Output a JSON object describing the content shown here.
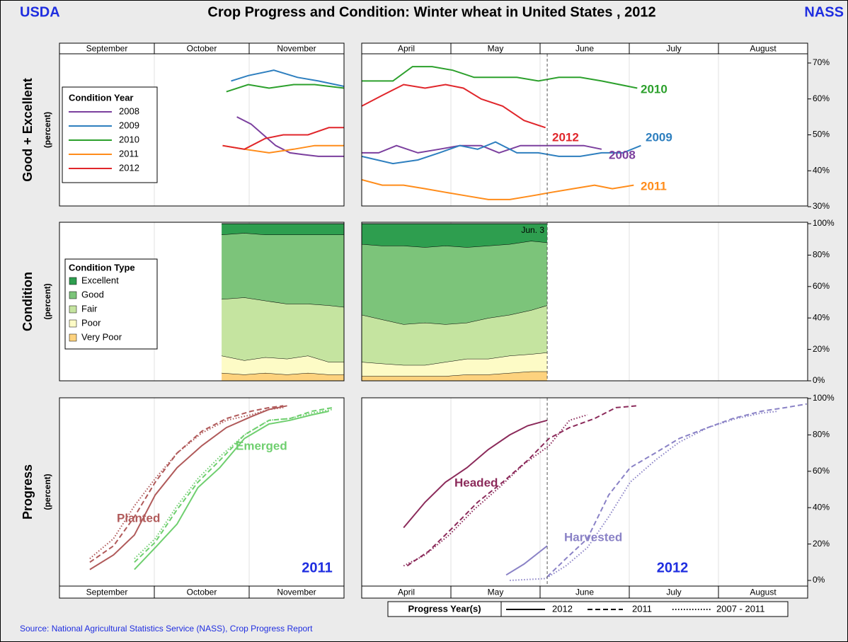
{
  "header": {
    "left": "USDA",
    "title": "Crop Progress and Condition: Winter wheat in United States , 2012",
    "right": "NASS"
  },
  "source": "Source: National Agricultural Statistics Service (NASS), Crop Progress Report",
  "chart_data": [
    {
      "type": "line",
      "ylabel": "Good + Excellent",
      "ylabel_note": "(percent)",
      "legend_title": "Condition Year",
      "xlim": [
        0,
        3
      ],
      "xticks": [
        0,
        1,
        2,
        3
      ],
      "months": [
        "September",
        "October",
        "November"
      ],
      "ylim": [
        30,
        70
      ],
      "series": [
        {
          "name": "2008",
          "color": "#7b3f9e",
          "x": [
            1.87,
            2.02,
            2.15,
            2.28,
            2.43,
            2.57,
            2.73,
            3.0
          ],
          "values": [
            55,
            53,
            50,
            47,
            45,
            44.5,
            44,
            44
          ]
        },
        {
          "name": "2009",
          "color": "#2e7fbf",
          "x": [
            1.81,
            1.99,
            2.26,
            2.51,
            2.73,
            3.0
          ],
          "values": [
            65,
            66.5,
            68,
            66,
            65,
            63.5
          ]
        },
        {
          "name": "2010",
          "color": "#2ca02c",
          "x": [
            1.76,
            1.99,
            2.21,
            2.47,
            2.69,
            3.0
          ],
          "values": [
            62,
            64,
            63,
            64,
            64,
            63
          ]
        },
        {
          "name": "2011",
          "color": "#ff8c1a",
          "x": [
            1.72,
            1.95,
            2.21,
            2.47,
            2.69,
            3.0
          ],
          "values": [
            47,
            46,
            45,
            46,
            47,
            47
          ]
        },
        {
          "name": "2012",
          "color": "#e0262b",
          "x": [
            1.72,
            1.95,
            2.17,
            2.36,
            2.62,
            2.84,
            3.0
          ],
          "values": [
            47,
            46,
            49,
            50,
            50,
            52,
            52
          ]
        }
      ]
    },
    {
      "type": "line",
      "xlim": [
        0,
        5
      ],
      "xticks": [
        0,
        1,
        2,
        3,
        4,
        5
      ],
      "months": [
        "April",
        "May",
        "June",
        "July",
        "August"
      ],
      "ylim": [
        30,
        70
      ],
      "marker_x": 2.08,
      "yticks": [
        {
          "value": 30,
          "label": "30%"
        },
        {
          "value": 40,
          "label": "40%"
        },
        {
          "value": 50,
          "label": "50%"
        },
        {
          "value": 60,
          "label": "60%"
        },
        {
          "value": 70,
          "label": "70%"
        }
      ],
      "series": [
        {
          "name": "2008",
          "color": "#7b3f9e",
          "x": [
            0,
            0.19,
            0.39,
            0.63,
            0.87,
            1.1,
            1.34,
            1.54,
            1.78,
            2.02,
            2.25,
            2.49,
            2.69
          ],
          "values": [
            45,
            45,
            47,
            45,
            46,
            47,
            47,
            45,
            47,
            47,
            47,
            47,
            46
          ]
        },
        {
          "name": "2009",
          "color": "#2e7fbf",
          "x": [
            0,
            0.35,
            0.63,
            0.87,
            1.1,
            1.3,
            1.5,
            1.74,
            1.98,
            2.21,
            2.45,
            2.69,
            2.93,
            3.13
          ],
          "values": [
            44,
            42,
            43,
            45,
            47,
            46,
            48,
            45,
            45,
            44,
            44,
            45,
            45,
            47
          ]
        },
        {
          "name": "2010",
          "color": "#2ca02c",
          "x": [
            0,
            0.35,
            0.57,
            0.79,
            1.02,
            1.26,
            1.5,
            1.74,
            1.98,
            2.21,
            2.45,
            2.69,
            3.09
          ],
          "values": [
            65,
            65,
            69,
            69,
            68,
            66,
            66,
            66,
            65,
            66,
            66,
            65,
            63
          ]
        },
        {
          "name": "2011",
          "color": "#ff8c1a",
          "x": [
            0,
            0.23,
            0.47,
            0.71,
            0.94,
            1.18,
            1.42,
            1.66,
            1.9,
            2.13,
            2.37,
            2.61,
            2.81,
            3.05
          ],
          "values": [
            37.5,
            36,
            36,
            35,
            34,
            33,
            32,
            32,
            33,
            34,
            35,
            36,
            35,
            36
          ]
        },
        {
          "name": "2012",
          "color": "#e0262b",
          "x": [
            0,
            0.23,
            0.47,
            0.71,
            0.94,
            1.14,
            1.34,
            1.58,
            1.82,
            2.06
          ],
          "values": [
            58,
            61,
            64,
            63,
            64,
            63,
            60,
            58,
            54,
            52
          ]
        }
      ]
    },
    {
      "type": "area",
      "ylabel": "Condition",
      "ylabel_note": "(percent)",
      "legend_title": "Condition Type",
      "xlim": [
        0,
        3
      ],
      "xticks": [
        0,
        1,
        2,
        3
      ],
      "ylim": [
        0,
        100
      ],
      "series": [
        {
          "name": "Very Poor",
          "color": "#fdd27e",
          "x": [
            1.71,
            1.95,
            2.17,
            2.4,
            2.62,
            2.84,
            3.0
          ],
          "values": [
            5,
            4,
            5,
            4,
            5,
            4,
            4
          ]
        },
        {
          "name": "Poor",
          "color": "#fdfbc6",
          "x": [
            1.71,
            1.95,
            2.17,
            2.4,
            2.62,
            2.84,
            3.0
          ],
          "values": [
            11,
            9,
            10,
            10,
            11,
            8,
            8
          ]
        },
        {
          "name": "Fair",
          "color": "#c5e4a0",
          "x": [
            1.71,
            1.95,
            2.17,
            2.4,
            2.62,
            2.84,
            3.0
          ],
          "values": [
            36,
            40,
            36,
            35,
            33,
            36,
            35
          ]
        },
        {
          "name": "Good",
          "color": "#7cc47a",
          "x": [
            1.71,
            1.95,
            2.17,
            2.4,
            2.62,
            2.84,
            3.0
          ],
          "values": [
            41,
            41,
            42,
            44,
            44,
            45,
            46
          ]
        },
        {
          "name": "Excellent",
          "color": "#2e9e4f",
          "x": [
            1.71,
            1.95,
            2.17,
            2.4,
            2.62,
            2.84,
            3.0
          ],
          "values": [
            7,
            6,
            7,
            7,
            7,
            7,
            7
          ]
        }
      ]
    },
    {
      "type": "area",
      "xlim": [
        0,
        5
      ],
      "xticks": [
        0,
        1,
        2,
        3,
        4,
        5
      ],
      "ylim": [
        0,
        100
      ],
      "marker_x": 2.08,
      "annotation": "Jun. 3",
      "yticks": [
        {
          "value": 0,
          "label": "0%"
        },
        {
          "value": 20,
          "label": "20%"
        },
        {
          "value": 40,
          "label": "40%"
        },
        {
          "value": 60,
          "label": "60%"
        },
        {
          "value": 80,
          "label": "80%"
        },
        {
          "value": 100,
          "label": "100%"
        }
      ],
      "series": [
        {
          "color": "#fdd27e",
          "x": [
            0,
            0.23,
            0.47,
            0.71,
            0.94,
            1.18,
            1.42,
            1.66,
            1.9,
            2.08
          ],
          "values": [
            3,
            3,
            3,
            3,
            3,
            4,
            4,
            5,
            6,
            6
          ]
        },
        {
          "color": "#fdfbc6",
          "x": [
            0,
            0.23,
            0.47,
            0.71,
            0.94,
            1.18,
            1.42,
            1.66,
            1.9,
            2.08
          ],
          "values": [
            9,
            8,
            7,
            7,
            9,
            10,
            10,
            11,
            11,
            12
          ]
        },
        {
          "color": "#c5e4a0",
          "x": [
            0,
            0.23,
            0.47,
            0.71,
            0.94,
            1.18,
            1.42,
            1.66,
            1.9,
            2.08
          ],
          "values": [
            30,
            28,
            26,
            27,
            24,
            23,
            26,
            26,
            28,
            30
          ]
        },
        {
          "color": "#7cc47a",
          "x": [
            0,
            0.23,
            0.47,
            0.71,
            0.94,
            1.18,
            1.42,
            1.66,
            1.9,
            2.08
          ],
          "values": [
            45,
            47,
            50,
            48,
            50,
            48,
            46,
            45,
            44,
            40
          ]
        },
        {
          "color": "#2e9e4f",
          "x": [
            0,
            0.23,
            0.47,
            0.71,
            0.94,
            1.18,
            1.42,
            1.66,
            1.9,
            2.08
          ],
          "values": [
            13,
            14,
            14,
            15,
            14,
            15,
            14,
            13,
            11,
            12
          ]
        }
      ]
    },
    {
      "type": "progress",
      "ylabel": "Progress",
      "ylabel_note": "(percent)",
      "annotation": "2011",
      "xlim": [
        0,
        3
      ],
      "xticks": [
        0,
        1,
        2,
        3
      ],
      "months": [
        "September",
        "October",
        "November"
      ],
      "ylim": [
        0,
        100
      ],
      "series": [
        {
          "name": "Planted",
          "color": "#b05a5a",
          "lines": [
            {
              "year": "2012",
              "x": [
                0.32,
                0.57,
                0.79,
                1.01,
                1.24,
                1.5,
                1.76,
                2.02,
                2.21,
                2.4
              ],
              "values": [
                6,
                14,
                25,
                47,
                62,
                74,
                84,
                90,
                94,
                96
              ]
            },
            {
              "year": "2011",
              "x": [
                0.32,
                0.57,
                0.79,
                1.01,
                1.24,
                1.5,
                1.76,
                2.02,
                2.21,
                2.36
              ],
              "values": [
                10,
                19,
                35,
                54,
                70,
                82,
                89,
                93,
                95,
                96
              ]
            },
            {
              "year": "2007 - 2011",
              "x": [
                0.32,
                0.57,
                0.79,
                1.01,
                1.24,
                1.5,
                1.76,
                2.02,
                2.21,
                2.36
              ],
              "values": [
                12,
                23,
                41,
                56,
                70,
                81,
                88,
                91,
                94,
                95
              ]
            }
          ]
        },
        {
          "name": "Emerged",
          "color": "#6fcf6f",
          "lines": [
            {
              "year": "2012",
              "x": [
                0.79,
                1.01,
                1.24,
                1.46,
                1.69,
                1.95,
                2.21,
                2.43,
                2.66,
                2.84
              ],
              "values": [
                6,
                18,
                31,
                51,
                62,
                78,
                86,
                88,
                91,
                93
              ]
            },
            {
              "year": "2011",
              "x": [
                0.79,
                1.01,
                1.24,
                1.46,
                1.69,
                1.95,
                2.21,
                2.43,
                2.66,
                2.88
              ],
              "values": [
                10,
                21,
                39,
                54,
                66,
                80,
                88,
                89,
                93,
                95
              ]
            },
            {
              "year": "2007 - 2011",
              "x": [
                0.79,
                1.01,
                1.24,
                1.46,
                1.69,
                1.95,
                2.21,
                2.43,
                2.66,
                2.88
              ],
              "values": [
                12,
                23,
                41,
                56,
                68,
                80,
                88,
                89,
                92,
                94
              ]
            }
          ]
        }
      ]
    },
    {
      "type": "progress",
      "annotation": "2012",
      "xlim": [
        0,
        5
      ],
      "xticks": [
        0,
        1,
        2,
        3,
        4,
        5
      ],
      "months": [
        "April",
        "May",
        "June",
        "July",
        "August"
      ],
      "ylim": [
        0,
        100
      ],
      "marker_x": 2.08,
      "yticks": [
        {
          "value": 0,
          "label": "0%"
        },
        {
          "value": 20,
          "label": "20%"
        },
        {
          "value": 40,
          "label": "40%"
        },
        {
          "value": 60,
          "label": "60%"
        },
        {
          "value": 80,
          "label": "80%"
        },
        {
          "value": 100,
          "label": "100%"
        }
      ],
      "legend": {
        "title": "Progress Year(s)",
        "items": [
          {
            "label": "2012",
            "dash": "solid"
          },
          {
            "label": "2011",
            "dash": "dashed"
          },
          {
            "label": "2007 - 2011",
            "dash": "dotted"
          }
        ]
      },
      "series": [
        {
          "name": "Headed",
          "color": "#8b2a5a",
          "lines": [
            {
              "year": "2012",
              "x": [
                0.47,
                0.71,
                0.94,
                1.18,
                1.42,
                1.66,
                1.86,
                2.08
              ],
              "values": [
                29,
                43,
                54,
                62,
                72,
                80,
                85,
                88
              ]
            },
            {
              "year": "2011",
              "x": [
                0.51,
                0.75,
                1.02,
                1.3,
                1.58,
                1.86,
                2.1,
                2.33,
                2.61,
                2.85,
                3.09
              ],
              "values": [
                8,
                16,
                29,
                43,
                54,
                66,
                78,
                84,
                89,
                95,
                96
              ]
            },
            {
              "year": "2007 - 2011",
              "x": [
                0.47,
                0.71,
                0.98,
                1.26,
                1.54,
                1.82,
                2.1,
                2.33,
                2.53
              ],
              "values": [
                8,
                14,
                25,
                39,
                51,
                64,
                74,
                88,
                91
              ]
            }
          ]
        },
        {
          "name": "Harvested",
          "color": "#8a82c6",
          "lines": [
            {
              "year": "2012",
              "x": [
                1.62,
                1.82,
                2.08
              ],
              "values": [
                3,
                9,
                19
              ]
            },
            {
              "year": "2011",
              "x": [
                2.08,
                2.29,
                2.53,
                2.77,
                3.01,
                3.29,
                3.56,
                3.88,
                4.16,
                4.48,
                4.75,
                4.99
              ],
              "values": [
                2,
                12,
                23,
                47,
                62,
                70,
                78,
                84,
                89,
                93,
                95,
                97
              ]
            },
            {
              "year": "2007 - 2011",
              "x": [
                1.66,
                2.06,
                2.29,
                2.53,
                2.77,
                3.01,
                3.29,
                3.56,
                3.88,
                4.2,
                4.48,
                4.67
              ],
              "values": [
                0,
                1,
                8,
                18,
                35,
                54,
                66,
                76,
                84,
                89,
                92,
                93
              ]
            }
          ]
        }
      ]
    }
  ]
}
